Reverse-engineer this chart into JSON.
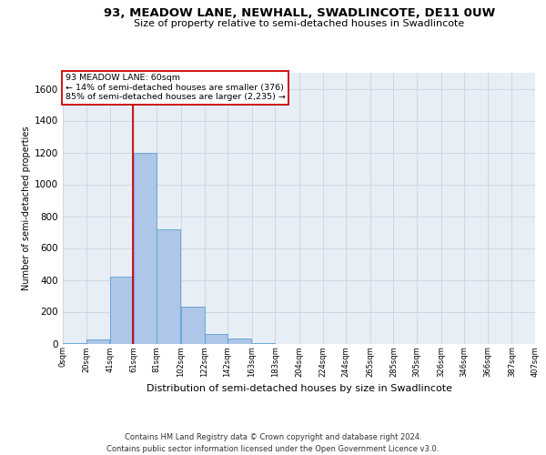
{
  "title": "93, MEADOW LANE, NEWHALL, SWADLINCOTE, DE11 0UW",
  "subtitle": "Size of property relative to semi-detached houses in Swadlincote",
  "xlabel": "Distribution of semi-detached houses by size in Swadlincote",
  "ylabel": "Number of semi-detached properties",
  "footnote1": "Contains HM Land Registry data © Crown copyright and database right 2024.",
  "footnote2": "Contains public sector information licensed under the Open Government Licence v3.0.",
  "bar_left_edges": [
    0,
    20,
    41,
    61,
    81,
    102,
    122,
    142,
    163,
    183,
    204,
    224,
    244,
    265,
    285,
    305,
    326,
    346,
    366,
    387
  ],
  "bar_heights": [
    5,
    25,
    420,
    1200,
    720,
    230,
    60,
    30,
    5,
    0,
    0,
    0,
    0,
    0,
    0,
    0,
    0,
    0,
    0,
    0
  ],
  "bar_color": "#aec6e8",
  "bar_edge_color": "#5a9fd4",
  "vline_x": 60,
  "vline_color": "#cc0000",
  "ylim": [
    0,
    1700
  ],
  "xlim": [
    0,
    407
  ],
  "yticks": [
    0,
    200,
    400,
    600,
    800,
    1000,
    1200,
    1400,
    1600
  ],
  "xtick_labels": [
    "0sqm",
    "20sqm",
    "41sqm",
    "61sqm",
    "81sqm",
    "102sqm",
    "122sqm",
    "142sqm",
    "163sqm",
    "183sqm",
    "204sqm",
    "224sqm",
    "244sqm",
    "265sqm",
    "285sqm",
    "305sqm",
    "326sqm",
    "346sqm",
    "366sqm",
    "387sqm",
    "407sqm"
  ],
  "xtick_positions": [
    0,
    20,
    41,
    61,
    81,
    102,
    122,
    142,
    163,
    183,
    204,
    224,
    244,
    265,
    285,
    305,
    326,
    346,
    366,
    387,
    407
  ],
  "annotation_line1": "93 MEADOW LANE: 60sqm",
  "annotation_line2": "← 14% of semi-detached houses are smaller (376)",
  "annotation_line3": "85% of semi-detached houses are larger (2,235) →",
  "grid_color": "#c8d4e0",
  "background_color": "#e8eef5",
  "title_fontsize": 9.5,
  "subtitle_fontsize": 8,
  "ylabel_fontsize": 7,
  "xlabel_fontsize": 8,
  "ytick_fontsize": 7.5,
  "xtick_fontsize": 6,
  "annot_fontsize": 6.8,
  "footnote_fontsize": 6
}
